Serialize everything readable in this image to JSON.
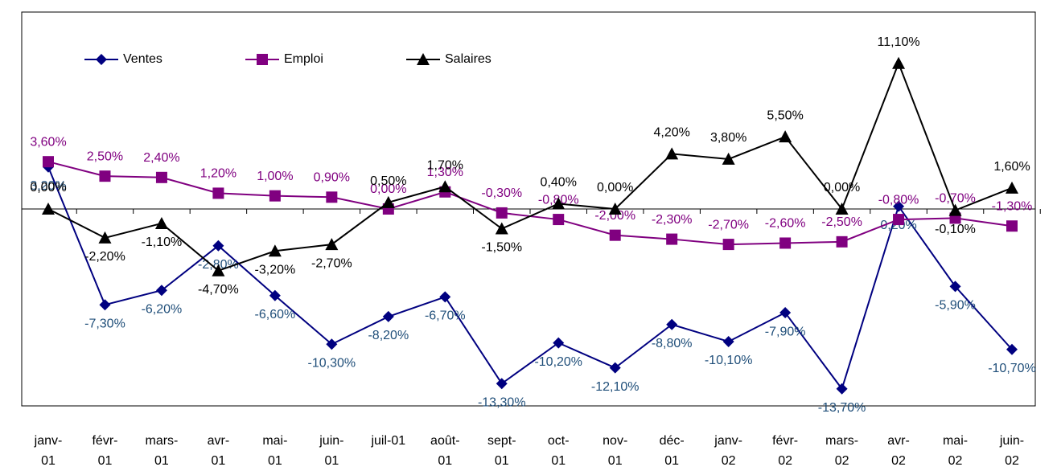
{
  "chart_data": {
    "type": "line",
    "categories": [
      "janv-\n01",
      "févr-\n01",
      "mars-\n01",
      "avr-\n01",
      "mai-\n01",
      "juin-\n01",
      "juil-01",
      "août-\n01",
      "sept-\n01",
      "oct-\n01",
      "nov-\n01",
      "déc-\n01",
      "janv-\n02",
      "févr-\n02",
      "mars-\n02",
      "avr-\n02",
      "mai-\n02",
      "juin-\n02"
    ],
    "series": [
      {
        "name": "Ventes",
        "color": "#000080",
        "label_color": "#1f4e79",
        "values": [
          3.2,
          -7.3,
          -6.2,
          -2.8,
          -6.6,
          -10.3,
          -8.2,
          -6.7,
          -13.3,
          -10.2,
          -12.1,
          -8.8,
          -10.1,
          -7.9,
          -13.7,
          0.2,
          -5.9,
          -10.7
        ],
        "value_labels": [
          "3,20%",
          "-7,30%",
          "-6,20%",
          "-2,80%",
          "-6,60%",
          "-10,30%",
          "-8,20%",
          "-6,70%",
          "-13,30%",
          "-10,20%",
          "-12,10%",
          "-8,80%",
          "-10,10%",
          "-7,90%",
          "-13,70%",
          "0,20%",
          "-5,90%",
          "-10,70%"
        ]
      },
      {
        "name": "Emploi",
        "color": "#800080",
        "label_color": "#800080",
        "values": [
          3.6,
          2.5,
          2.4,
          1.2,
          1.0,
          0.9,
          0.0,
          1.3,
          -0.3,
          -0.8,
          -2.0,
          -2.3,
          -2.7,
          -2.6,
          -2.5,
          -0.8,
          -0.7,
          -1.3
        ],
        "value_labels": [
          "3,60%",
          "2,50%",
          "2,40%",
          "1,20%",
          "1,00%",
          "0,90%",
          "0,00%",
          "1,30%",
          "-0,30%",
          "-0,80%",
          "-2,00%",
          "-2,30%",
          "-2,70%",
          "-2,60%",
          "-2,50%",
          "-0,80%",
          "-0,70%",
          "-1,30%"
        ]
      },
      {
        "name": "Salaires",
        "color": "#000000",
        "label_color": "#000000",
        "values": [
          0.0,
          -2.2,
          -1.1,
          -4.7,
          -3.2,
          -2.7,
          0.5,
          1.7,
          -1.5,
          0.4,
          0.0,
          4.2,
          3.8,
          5.5,
          0.0,
          11.1,
          -0.1,
          1.6
        ],
        "value_labels": [
          "0,00%",
          "-2,20%",
          "-1,10%",
          "-4,70%",
          "-3,20%",
          "-2,70%",
          "0,50%",
          "1,70%",
          "-1,50%",
          "0,40%",
          "0,00%",
          "4,20%",
          "3,80%",
          "5,50%",
          "0,00%",
          "11,10%",
          "-0,10%",
          "1,60%"
        ]
      }
    ],
    "ylim": [
      -15,
      15
    ],
    "legend": "top"
  }
}
